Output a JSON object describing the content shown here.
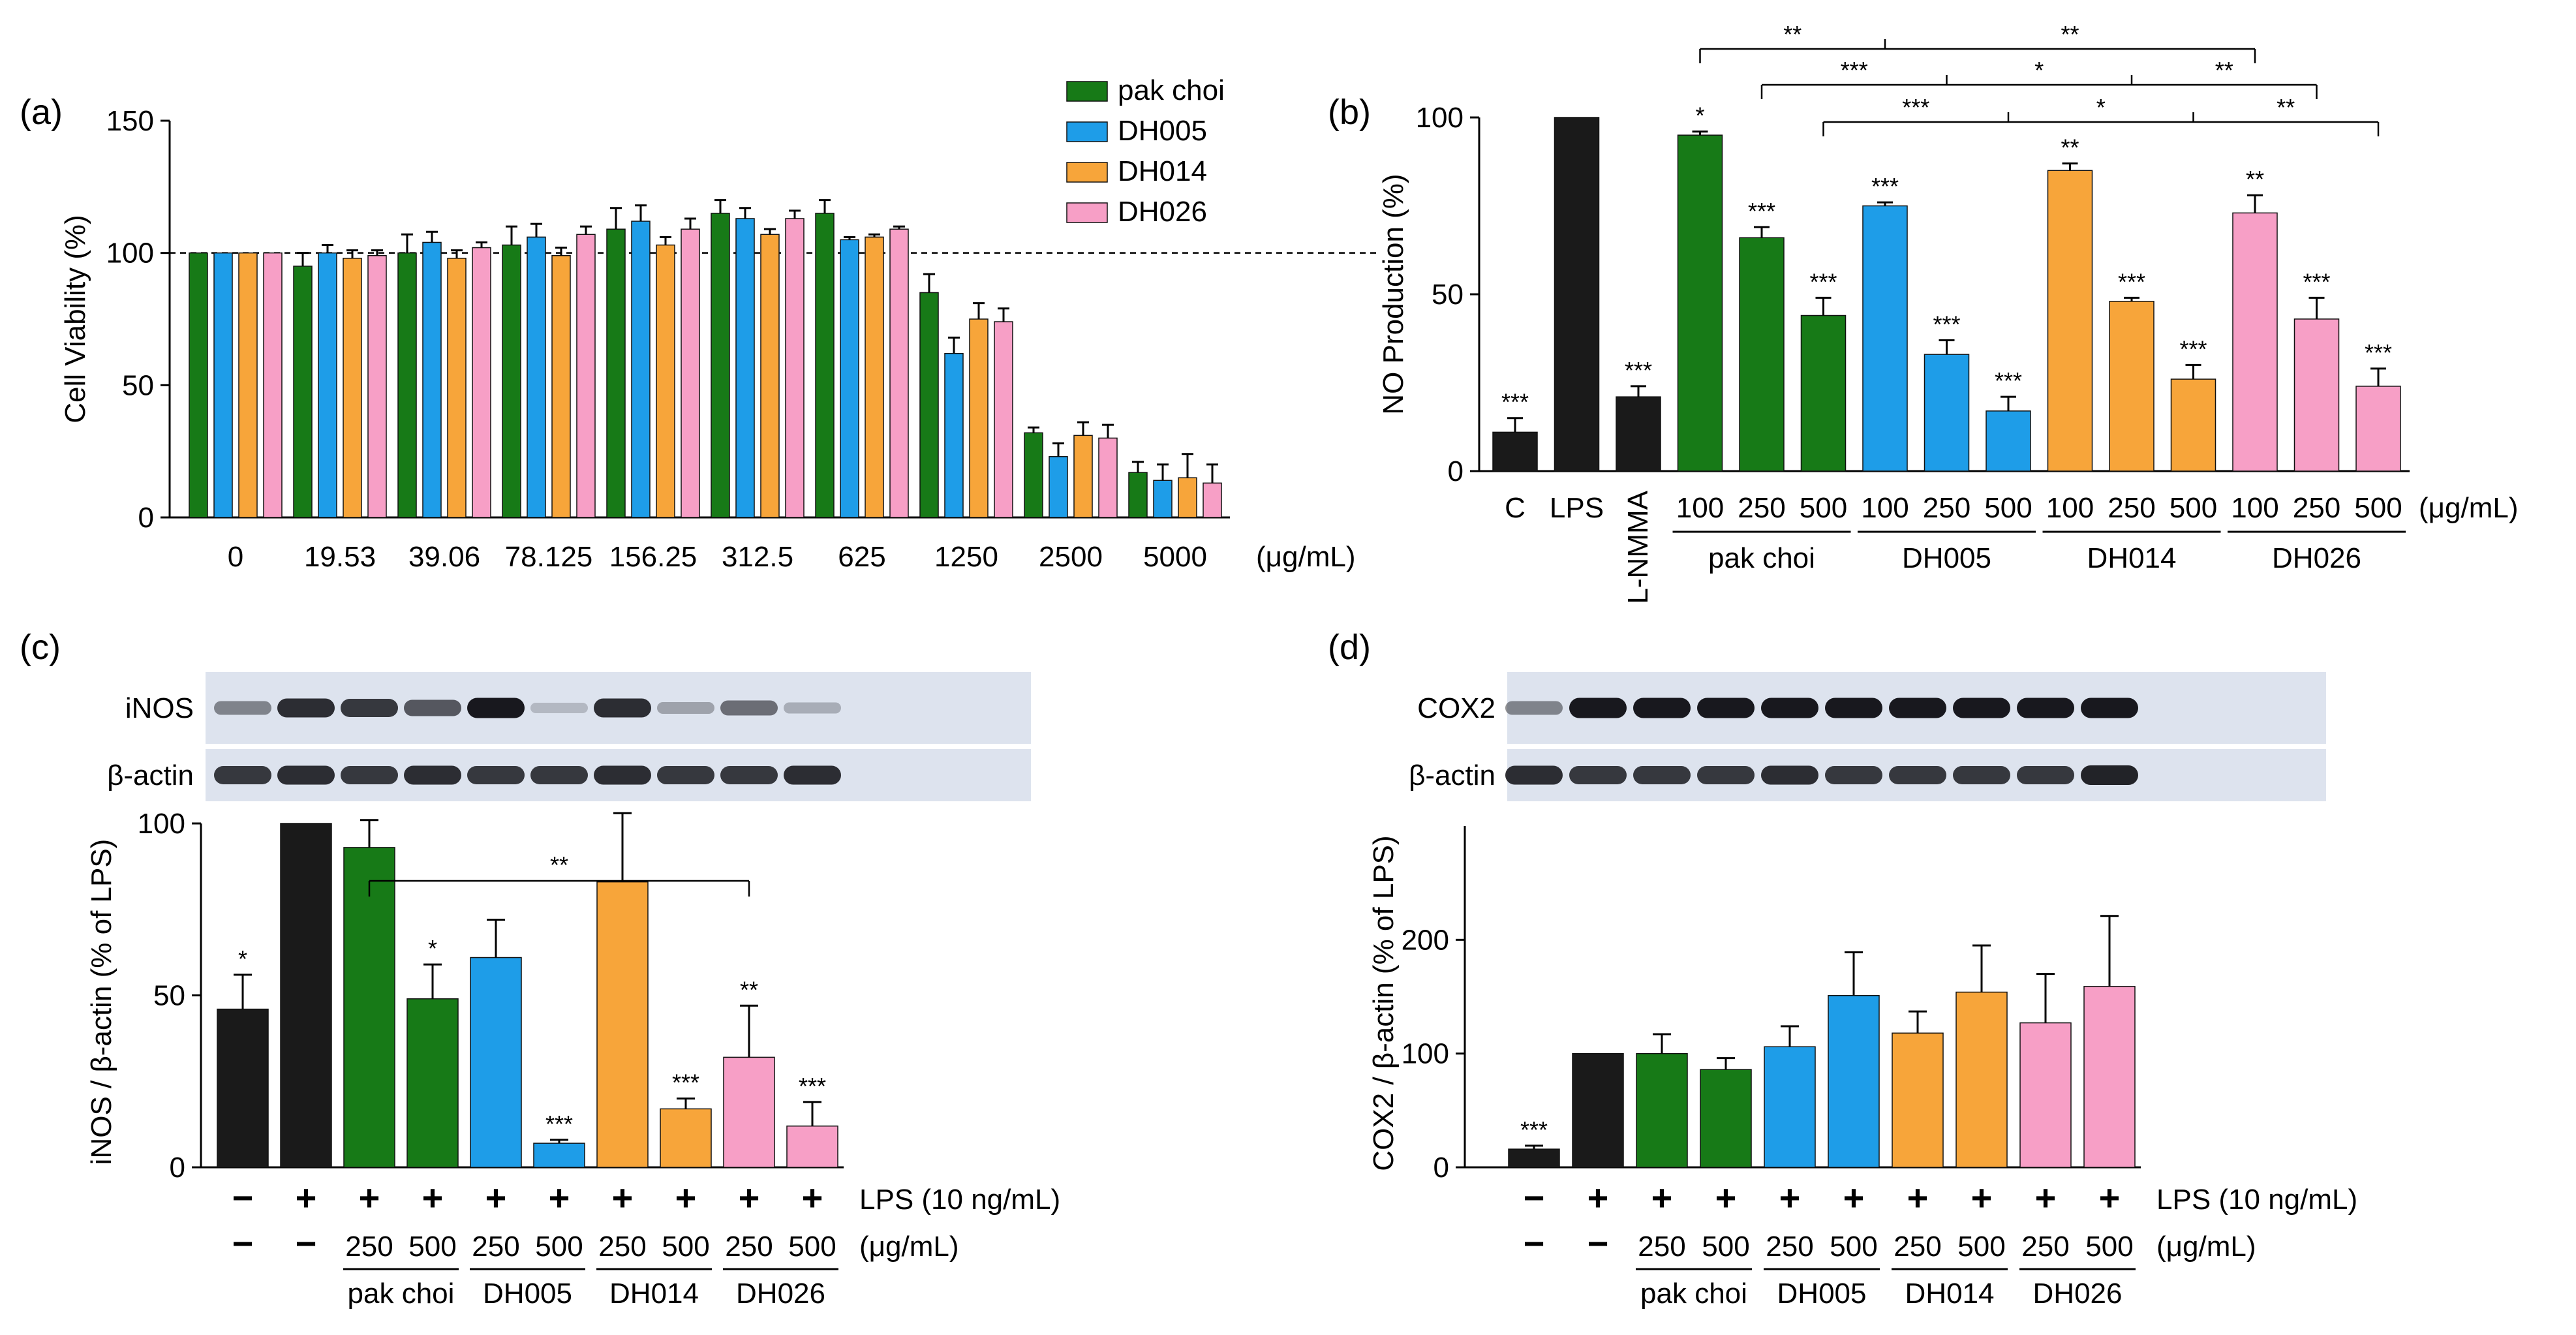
{
  "colors": {
    "pak_choi": "#177a17",
    "DH005": "#1e9de8",
    "DH014": "#f7a53a",
    "DH026": "#f79fc6",
    "control": "#1a1a1a",
    "blot_bg": "#dde3ee"
  },
  "chart_data": [
    {
      "panel": "(a)",
      "type": "bar",
      "ylabel": "Cell Viability  (%)",
      "xunit": "(μg/mL)",
      "categories": [
        "0",
        "19.53",
        "39.06",
        "78.125",
        "156.25",
        "312.5",
        "625",
        "1250",
        "2500",
        "5000"
      ],
      "ylim": [
        0,
        150
      ],
      "yticks": [
        "0",
        "50",
        "100",
        "150"
      ],
      "reference_line": 100,
      "legend_position": "top-right",
      "series": [
        {
          "name": "pak choi",
          "color_key": "pak_choi",
          "values": [
            100,
            95,
            100,
            103,
            109,
            115,
            115,
            85,
            32,
            17
          ],
          "errors": [
            0,
            5,
            7,
            7,
            8,
            5,
            5,
            7,
            2,
            4
          ]
        },
        {
          "name": "DH005",
          "color_key": "DH005",
          "values": [
            100,
            100,
            104,
            106,
            112,
            113,
            105,
            62,
            23,
            14
          ],
          "errors": [
            0,
            3,
            4,
            5,
            6,
            4,
            1,
            6,
            5,
            6
          ]
        },
        {
          "name": "DH014",
          "color_key": "DH014",
          "values": [
            100,
            98,
            98,
            99,
            103,
            107,
            106,
            75,
            31,
            15
          ],
          "errors": [
            0,
            3,
            3,
            3,
            3,
            2,
            1,
            6,
            5,
            9
          ]
        },
        {
          "name": "DH026",
          "color_key": "DH026",
          "values": [
            100,
            99,
            102,
            107,
            109,
            113,
            109,
            74,
            30,
            13
          ],
          "errors": [
            0,
            2,
            2,
            3,
            4,
            3,
            1,
            5,
            5,
            7
          ]
        }
      ]
    },
    {
      "panel": "(b)",
      "type": "bar",
      "ylabel": "NO Production  (%)",
      "xunit": "(μg/mL)",
      "ylim": [
        0,
        100
      ],
      "yticks": [
        "0",
        "50",
        "100"
      ],
      "bars": [
        {
          "label": "C",
          "value": 11,
          "error": 4,
          "sig": "***",
          "color_key": "control"
        },
        {
          "label": "LPS",
          "value": 100,
          "error": 0,
          "sig": "",
          "color_key": "control"
        },
        {
          "label": "L-NMMA",
          "value": 21,
          "error": 3,
          "sig": "***",
          "color_key": "control"
        },
        {
          "label": "100",
          "value": 95,
          "error": 1,
          "sig": "*",
          "color_key": "pak_choi"
        },
        {
          "label": "250",
          "value": 66,
          "error": 3,
          "sig": "***",
          "color_key": "pak_choi"
        },
        {
          "label": "500",
          "value": 44,
          "error": 5,
          "sig": "***",
          "color_key": "pak_choi"
        },
        {
          "label": "100",
          "value": 75,
          "error": 1,
          "sig": "***",
          "color_key": "DH005"
        },
        {
          "label": "250",
          "value": 33,
          "error": 4,
          "sig": "***",
          "color_key": "DH005"
        },
        {
          "label": "500",
          "value": 17,
          "error": 4,
          "sig": "***",
          "color_key": "DH005"
        },
        {
          "label": "100",
          "value": 85,
          "error": 2,
          "sig": "**",
          "color_key": "DH014"
        },
        {
          "label": "250",
          "value": 48,
          "error": 1,
          "sig": "***",
          "color_key": "DH014"
        },
        {
          "label": "500",
          "value": 26,
          "error": 4,
          "sig": "***",
          "color_key": "DH014"
        },
        {
          "label": "100",
          "value": 73,
          "error": 5,
          "sig": "**",
          "color_key": "DH026"
        },
        {
          "label": "250",
          "value": 43,
          "error": 6,
          "sig": "***",
          "color_key": "DH026"
        },
        {
          "label": "500",
          "value": 24,
          "error": 5,
          "sig": "***",
          "color_key": "DH026"
        }
      ],
      "groups": [
        {
          "name": "pak choi",
          "from": 3,
          "to": 5
        },
        {
          "name": "DH005",
          "from": 6,
          "to": 8
        },
        {
          "name": "DH014",
          "from": 9,
          "to": 11
        },
        {
          "name": "DH026",
          "from": 12,
          "to": 14
        }
      ],
      "comparisons": [
        {
          "row": 0,
          "points": [
            3,
            6,
            12
          ],
          "labels": [
            "**",
            "**"
          ]
        },
        {
          "row": 1,
          "points": [
            4,
            7,
            10,
            13
          ],
          "labels": [
            "***",
            "*",
            "**"
          ]
        },
        {
          "row": 2,
          "points": [
            5,
            8,
            11,
            14
          ],
          "labels": [
            "***",
            "*",
            "**"
          ]
        }
      ]
    },
    {
      "panel": "(c)",
      "type": "bar",
      "ylabel": "iNOS / β-actin  (% of LPS)",
      "ylim": [
        0,
        100
      ],
      "yticks": [
        "0",
        "50",
        "100"
      ],
      "blot_labels": [
        "iNOS",
        "β-actin"
      ],
      "blot_intensity": [
        [
          0.45,
          0.85,
          0.8,
          0.65,
          0.95,
          0.2,
          0.85,
          0.3,
          0.55,
          0.25
        ],
        [
          0.8,
          0.85,
          0.8,
          0.85,
          0.8,
          0.8,
          0.85,
          0.8,
          0.8,
          0.85
        ]
      ],
      "lps_row_label": "LPS (10 ng/mL)",
      "conc_row_label": "(μg/mL)",
      "bars": [
        {
          "lps": "−",
          "conc": "−",
          "value": 46,
          "error": 10,
          "sig": "*",
          "color_key": "control"
        },
        {
          "lps": "+",
          "conc": "−",
          "value": 100,
          "error": 0,
          "sig": "",
          "color_key": "control"
        },
        {
          "lps": "+",
          "conc": "250",
          "value": 93,
          "error": 8,
          "sig": "",
          "color_key": "pak_choi"
        },
        {
          "lps": "+",
          "conc": "500",
          "value": 49,
          "error": 10,
          "sig": "*",
          "color_key": "pak_choi"
        },
        {
          "lps": "+",
          "conc": "250",
          "value": 61,
          "error": 11,
          "sig": "",
          "color_key": "DH005"
        },
        {
          "lps": "+",
          "conc": "500",
          "value": 7,
          "error": 1,
          "sig": "***",
          "color_key": "DH005"
        },
        {
          "lps": "+",
          "conc": "250",
          "value": 83,
          "error": 20,
          "sig": "",
          "color_key": "DH014"
        },
        {
          "lps": "+",
          "conc": "500",
          "value": 17,
          "error": 3,
          "sig": "***",
          "color_key": "DH014"
        },
        {
          "lps": "+",
          "conc": "250",
          "value": 32,
          "error": 15,
          "sig": "**",
          "color_key": "DH026"
        },
        {
          "lps": "+",
          "conc": "500",
          "value": 12,
          "error": 7,
          "sig": "***",
          "color_key": "DH026"
        }
      ],
      "groups": [
        {
          "name": "pak choi",
          "from": 2,
          "to": 3
        },
        {
          "name": "DH005",
          "from": 4,
          "to": 5
        },
        {
          "name": "DH014",
          "from": 6,
          "to": 7
        },
        {
          "name": "DH026",
          "from": 8,
          "to": 9
        }
      ],
      "comparisons": [
        {
          "row": 0,
          "points": [
            2,
            8
          ],
          "labels": [
            "**"
          ]
        }
      ]
    },
    {
      "panel": "(d)",
      "type": "bar",
      "ylabel": "COX2 / β-actin  (% of LPS)",
      "ylim": [
        0,
        300
      ],
      "yticks": [
        "0",
        "100",
        "200"
      ],
      "blot_labels": [
        "COX2",
        "β-actin"
      ],
      "blot_intensity": [
        [
          0.45,
          0.95,
          0.95,
          0.95,
          0.95,
          0.95,
          0.95,
          0.95,
          0.95,
          0.95
        ],
        [
          0.85,
          0.8,
          0.8,
          0.8,
          0.85,
          0.8,
          0.8,
          0.8,
          0.8,
          0.9
        ]
      ],
      "lps_row_label": "LPS (10 ng/mL)",
      "conc_row_label": "(μg/mL)",
      "bars": [
        {
          "lps": "−",
          "conc": "−",
          "value": 16,
          "error": 3,
          "sig": "***",
          "color_key": "control"
        },
        {
          "lps": "+",
          "conc": "−",
          "value": 100,
          "error": 0,
          "sig": "",
          "color_key": "control"
        },
        {
          "lps": "+",
          "conc": "250",
          "value": 100,
          "error": 17,
          "sig": "",
          "color_key": "pak_choi"
        },
        {
          "lps": "+",
          "conc": "500",
          "value": 86,
          "error": 10,
          "sig": "",
          "color_key": "pak_choi"
        },
        {
          "lps": "+",
          "conc": "250",
          "value": 106,
          "error": 18,
          "sig": "",
          "color_key": "DH005"
        },
        {
          "lps": "+",
          "conc": "500",
          "value": 151,
          "error": 38,
          "sig": "",
          "color_key": "DH005"
        },
        {
          "lps": "+",
          "conc": "250",
          "value": 118,
          "error": 19,
          "sig": "",
          "color_key": "DH014"
        },
        {
          "lps": "+",
          "conc": "500",
          "value": 154,
          "error": 41,
          "sig": "",
          "color_key": "DH014"
        },
        {
          "lps": "+",
          "conc": "250",
          "value": 127,
          "error": 43,
          "sig": "",
          "color_key": "DH026"
        },
        {
          "lps": "+",
          "conc": "500",
          "value": 159,
          "error": 62,
          "sig": "",
          "color_key": "DH026"
        }
      ],
      "groups": [
        {
          "name": "pak choi",
          "from": 2,
          "to": 3
        },
        {
          "name": "DH005",
          "from": 4,
          "to": 5
        },
        {
          "name": "DH014",
          "from": 6,
          "to": 7
        },
        {
          "name": "DH026",
          "from": 8,
          "to": 9
        }
      ],
      "comparisons": []
    }
  ]
}
